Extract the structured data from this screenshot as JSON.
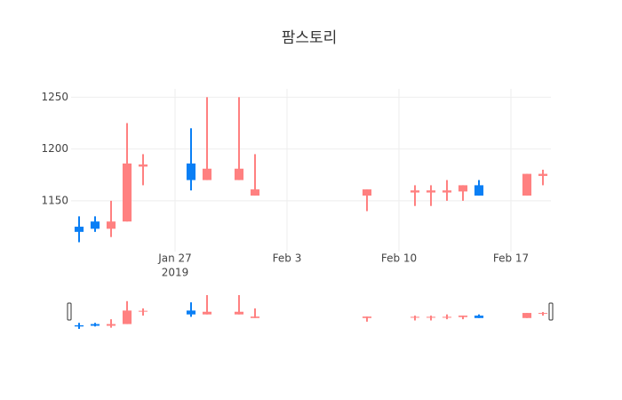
{
  "chart_data": {
    "type": "candlestick",
    "title": "팜스토리",
    "x": [
      "2019-01-21",
      "2019-01-22",
      "2019-01-23",
      "2019-01-24",
      "2019-01-25",
      "2019-01-28",
      "2019-01-29",
      "2019-01-31",
      "2019-02-01",
      "2019-02-08",
      "2019-02-11",
      "2019-02-12",
      "2019-02-13",
      "2019-02-14",
      "2019-02-15",
      "2019-02-18",
      "2019-02-19"
    ],
    "open": [
      1120,
      1123,
      1130,
      1186,
      1185,
      1170,
      1181,
      1181,
      1161,
      1161,
      1160,
      1160,
      1160,
      1165,
      1155,
      1176,
      1176
    ],
    "high": [
      1135,
      1135,
      1150,
      1225,
      1195,
      1220,
      1250,
      1250,
      1195,
      1161,
      1165,
      1165,
      1170,
      1165,
      1170,
      1176,
      1180
    ],
    "low": [
      1110,
      1120,
      1115,
      1130,
      1165,
      1160,
      1170,
      1170,
      1155,
      1140,
      1145,
      1145,
      1150,
      1150,
      1155,
      1155,
      1165
    ],
    "close": [
      1125,
      1130,
      1123,
      1130,
      1183,
      1186,
      1170,
      1170,
      1155,
      1155,
      1158,
      1158,
      1158,
      1159,
      1165,
      1155,
      1174
    ],
    "increasing_color": "#0a7ff5",
    "decreasing_color": "#ff8080",
    "xlim": [
      "2019-01-20 12:00",
      "2019-02-19 12:00"
    ],
    "xticks": [
      {
        "value": "2019-01-27",
        "label": "Jan 27"
      },
      {
        "value": "2019-02-03",
        "label": "Feb 3"
      },
      {
        "value": "2019-02-10",
        "label": "Feb 10"
      },
      {
        "value": "2019-02-17",
        "label": "Feb 17"
      }
    ],
    "xtick_year": "2019",
    "ylim": [
      1101,
      1258
    ],
    "yticks": [
      1150,
      1200,
      1250
    ],
    "grid": true,
    "rangeslider": true
  }
}
